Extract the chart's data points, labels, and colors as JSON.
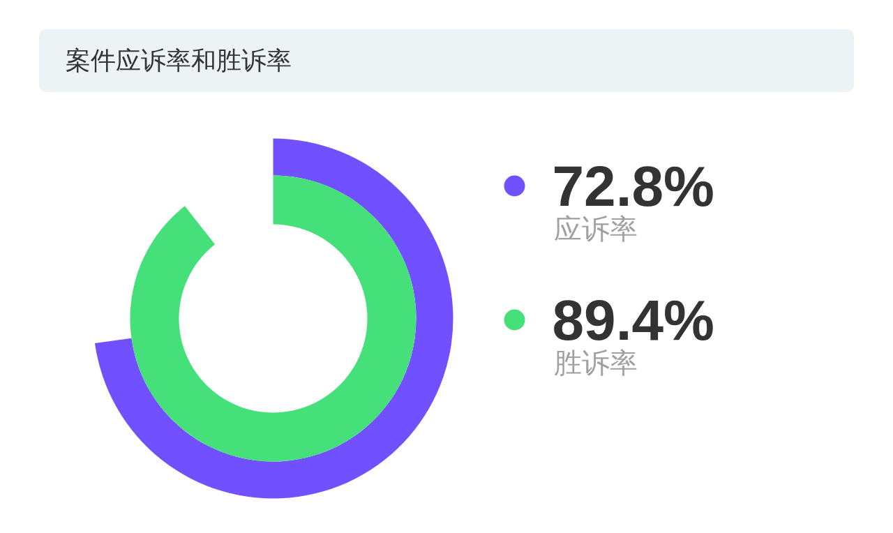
{
  "chart_data": {
    "type": "other",
    "title": "案件应诉率和胜诉率",
    "categories": [
      "应诉率",
      "胜诉率"
    ],
    "values": [
      72.8,
      89.4
    ],
    "colors": [
      "#7150ff",
      "#46e07a"
    ],
    "value_labels": [
      "72.8%",
      "89.4%"
    ]
  }
}
